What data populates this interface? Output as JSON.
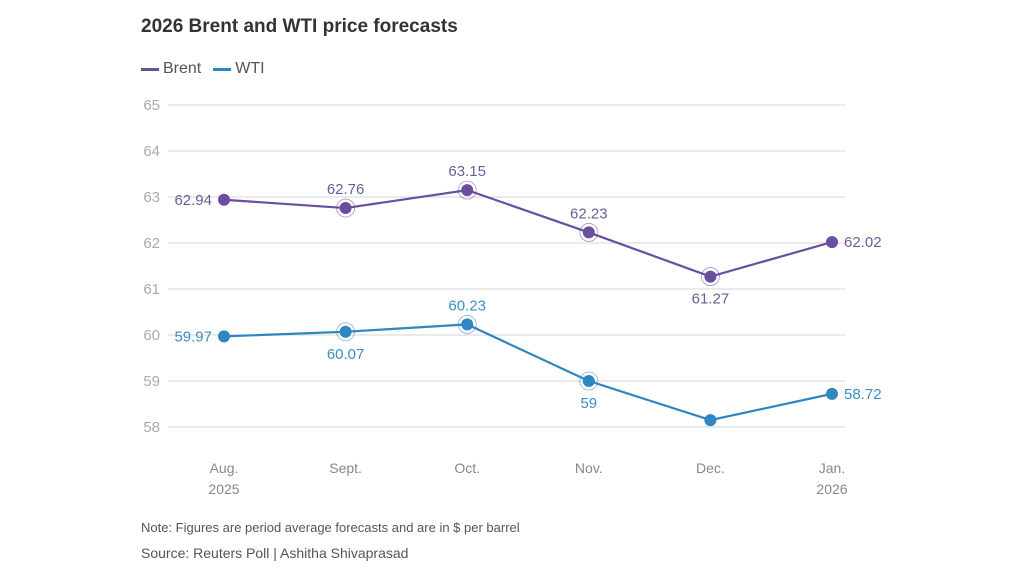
{
  "chart_data": {
    "type": "line",
    "title": "2026 Brent and WTI price forecasts",
    "categories": [
      [
        "Aug.",
        "2025"
      ],
      [
        "Sept.",
        ""
      ],
      [
        "Oct.",
        ""
      ],
      [
        "Nov.",
        ""
      ],
      [
        "Dec.",
        ""
      ],
      [
        "Jan.",
        "2026"
      ]
    ],
    "ylim": [
      58,
      65
    ],
    "yticks": [
      58,
      59,
      60,
      61,
      62,
      63,
      64,
      65
    ],
    "grid": true,
    "legend_placement": "top-left",
    "series": [
      {
        "name": "Brent",
        "color": "#6a4f9e",
        "label_color": "#6b5c99",
        "values": [
          62.94,
          62.76,
          63.15,
          62.23,
          61.27,
          62.02
        ],
        "labels": [
          "62.94",
          "62.76",
          "63.15",
          "62.23",
          "61.27",
          "62.02"
        ],
        "label_positions": [
          "left",
          "above",
          "above",
          "above",
          "below",
          "right"
        ]
      },
      {
        "name": "WTI",
        "color": "#2f86c0",
        "label_color": "#3b8fbf",
        "values": [
          59.97,
          60.07,
          60.23,
          59.0,
          58.15,
          58.72
        ],
        "labels": [
          "59.97",
          "60.07",
          "60.23",
          "59",
          "",
          "58.72"
        ],
        "label_positions": [
          "left",
          "below",
          "above",
          "below",
          "none",
          "right"
        ]
      }
    ]
  },
  "note": "Note: Figures are period average forecasts and are in $ per barrel",
  "source": "Source: Reuters Poll | Ashitha Shivaprasad"
}
